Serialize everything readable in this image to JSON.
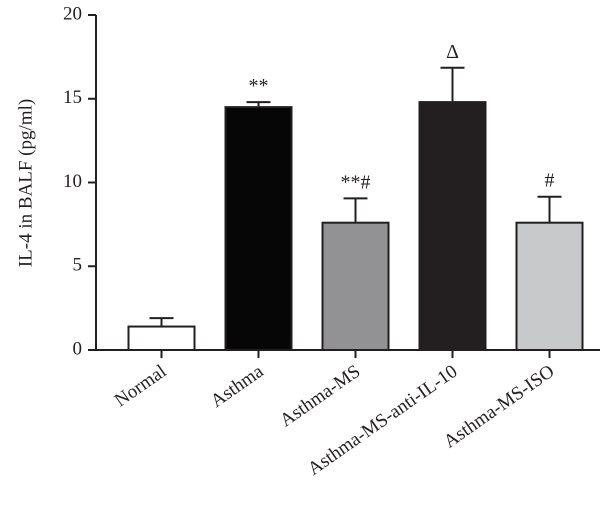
{
  "chart_data": {
    "type": "bar",
    "title": "",
    "xlabel": "",
    "ylabel": "IL-4 in BALF (pg/ml)",
    "ylim": [
      0,
      20
    ],
    "yticks": [
      0,
      5,
      10,
      15,
      20
    ],
    "grid": false,
    "categories": [
      "Normal",
      "Asthma",
      "Asthma-MS",
      "Asthma-MS-anti-IL-10",
      "Asthma-MS-ISO"
    ],
    "values": [
      1.4,
      14.5,
      7.6,
      14.8,
      7.6
    ],
    "errors": [
      0.5,
      0.3,
      1.45,
      2.05,
      1.55
    ],
    "annotations": [
      "",
      "**",
      "**#",
      "Δ",
      "#"
    ],
    "colors": [
      "#ffffff",
      "#060606",
      "#929294",
      "#231f20",
      "#c8c9cb"
    ]
  }
}
